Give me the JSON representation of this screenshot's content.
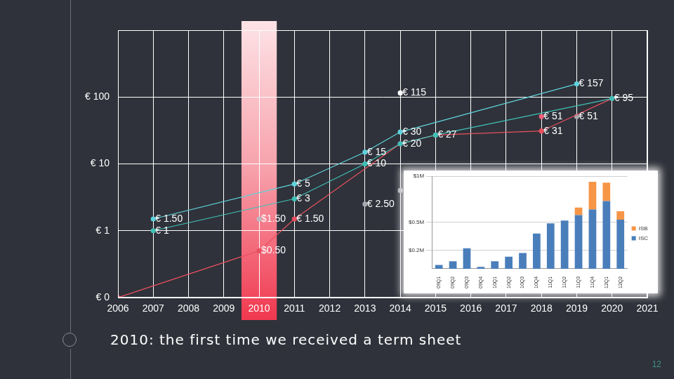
{
  "chart_data": [
    {
      "type": "line",
      "log": "y",
      "grid": true,
      "data_labels": true,
      "xlim": [
        2006,
        2021
      ],
      "xticks": [
        2006,
        2007,
        2008,
        2009,
        2010,
        2011,
        2012,
        2013,
        2014,
        2015,
        2016,
        2017,
        2018,
        2019,
        2020,
        2021
      ],
      "ylim": [
        0.1,
        1000
      ],
      "yticks": [
        {
          "value": 0.1,
          "label": "€ 0"
        },
        {
          "value": 1,
          "label": "€ 1"
        },
        {
          "value": 10,
          "label": "€ 10"
        },
        {
          "value": 100,
          "label": "€ 100"
        }
      ],
      "band": [
        2009.5,
        2010.5
      ],
      "series": [
        {
          "color": "#5fd3dc",
          "x": [
            2007,
            2011,
            2013,
            2014,
            2019
          ],
          "values": [
            1.5,
            5,
            15,
            30,
            157
          ],
          "value_labels": [
            "€ 1.50",
            "€ 5",
            "€ 15",
            "€ 30",
            "€ 157"
          ]
        },
        {
          "color": "#3fc1b8",
          "x": [
            2007,
            2011,
            2013,
            2014,
            2015,
            2020
          ],
          "values": [
            1,
            3,
            10,
            20,
            27,
            95
          ],
          "value_labels": [
            "€ 1",
            "€ 3",
            "€ 10",
            "€ 20",
            "€ 27",
            "€ 95"
          ]
        },
        {
          "color": "#e8505f",
          "x": [
            2006,
            2010,
            2011,
            2014,
            2015,
            2018,
            2020
          ],
          "values": [
            0.1,
            0.5,
            1.5,
            20,
            27,
            31,
            95
          ],
          "value_labels": [
            null,
            "$0.50",
            "€ 1.50",
            null,
            null,
            "€ 31",
            null
          ]
        },
        {
          "type": "scatter",
          "colors": [
            "#b9b9bf",
            "#a9a9b0",
            "#ffffff",
            "#a9a9b0",
            "#f0607a",
            "#a9a9b0"
          ],
          "x": [
            2010,
            2013,
            2014,
            2014,
            2018,
            2019
          ],
          "values": [
            1.5,
            2.5,
            115,
            4,
            51,
            51
          ],
          "value_labels": [
            "$1.50",
            "€ 2.50",
            "€ 115",
            null,
            "€ 51",
            "€ 51"
          ]
        }
      ]
    },
    {
      "type": "bar",
      "stacked": true,
      "grid": true,
      "legend": "right",
      "categories": [
        "09Q1",
        "09Q2",
        "09Q3",
        "09Q4",
        "10Q1",
        "10Q2",
        "10Q3",
        "10Q4",
        "11Q1",
        "11Q2",
        "11Q3",
        "11Q4",
        "12Q1",
        "12Q2"
      ],
      "ylim": [
        0,
        1000000
      ],
      "yticks": [
        {
          "value": 200000,
          "label": "$0.2M"
        },
        {
          "value": 500000,
          "label": "$0.5M"
        },
        {
          "value": 1000000,
          "label": "$1M"
        }
      ],
      "series": [
        {
          "name": "ISC",
          "color": "#4a7ebb",
          "values": [
            40000,
            80000,
            220000,
            20000,
            80000,
            130000,
            170000,
            380000,
            490000,
            520000,
            580000,
            640000,
            730000,
            530000
          ]
        },
        {
          "name": "ISB",
          "color": "#f79646",
          "values": [
            0,
            0,
            0,
            0,
            0,
            0,
            0,
            0,
            0,
            0,
            80000,
            300000,
            200000,
            90000
          ]
        }
      ]
    }
  ],
  "caption": "2010: the first time we received a term sheet",
  "page_number": 12
}
